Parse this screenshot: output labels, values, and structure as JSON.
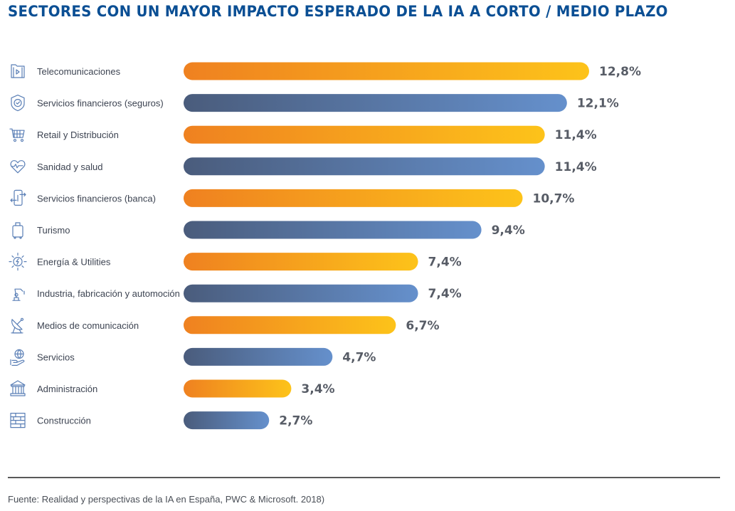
{
  "chart_data": {
    "type": "bar",
    "orientation": "horizontal",
    "title": "SECTORES CON UN MAYOR IMPACTO ESPERADO DE LA IA A CORTO / MEDIO PLAZO",
    "xlabel": "",
    "ylabel": "",
    "xlim": [
      0,
      12.8
    ],
    "grid": false,
    "legend": "none",
    "value_format": "percent-comma-decimal",
    "categories": [
      "Telecomunicaciones",
      "Servicios financieros (seguros)",
      "Retail y Distribución",
      "Sanidad y salud",
      "Servicios financieros (banca)",
      "Turismo",
      "Energía & Utilities",
      "Industria, fabricación y automoción",
      "Medios de comunicación",
      "Servicios",
      "Administración",
      "Construcción"
    ],
    "values": [
      12.8,
      12.1,
      11.4,
      11.4,
      10.7,
      9.4,
      7.4,
      7.4,
      6.7,
      4.7,
      3.4,
      2.7
    ],
    "value_labels": [
      "12,8%",
      "12,1%",
      "11,4%",
      "11,4%",
      "10,7%",
      "9,4%",
      "7,4%",
      "7,4%",
      "6,7%",
      "4,7%",
      "3,4%",
      "2,7%"
    ],
    "icons": [
      "video-folder-icon",
      "shield-check-icon",
      "shopping-cart-icon",
      "heart-pulse-icon",
      "mobile-banking-icon",
      "luggage-icon",
      "energy-bolt-icon",
      "robot-arm-icon",
      "satellite-dish-icon",
      "globe-hand-icon",
      "government-building-icon",
      "brick-wall-icon"
    ],
    "bar_styles": [
      "orange",
      "blue",
      "orange",
      "blue",
      "orange",
      "blue",
      "orange",
      "blue",
      "orange",
      "blue",
      "orange",
      "blue"
    ]
  },
  "colors": {
    "title": "#0b4f94",
    "orange_start": "#ef8120",
    "orange_end": "#fdc31a",
    "blue_start": "#4a5c7c",
    "blue_end": "#6590cc",
    "value_text": "#575c66",
    "icon": "#5a7fb6"
  },
  "footer": {
    "source": "Fuente: Realidad y perspectivas de la IA en España, PWC & Microsoft. 2018)"
  }
}
